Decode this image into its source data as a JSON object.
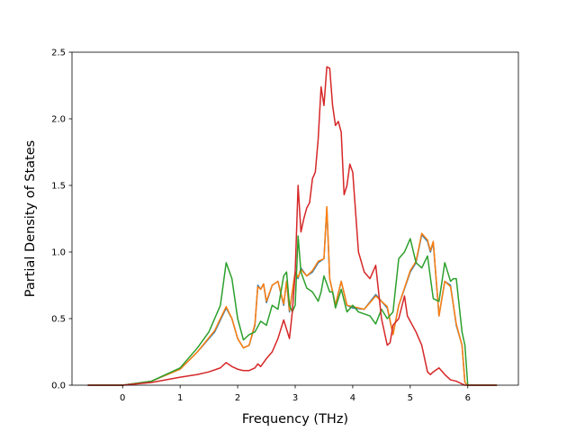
{
  "chart_data": {
    "type": "line",
    "title": "",
    "xlabel": "Frequency (THz)",
    "ylabel": "Partial Density of States",
    "xlim": [
      -0.88,
      6.88
    ],
    "ylim": [
      0.0,
      2.5
    ],
    "xticks": [
      0,
      1,
      2,
      3,
      4,
      5,
      6
    ],
    "xtick_labels": [
      "0",
      "1",
      "2",
      "3",
      "4",
      "5",
      "6"
    ],
    "yticks": [
      0.0,
      0.5,
      1.0,
      1.5,
      2.0,
      2.5
    ],
    "ytick_labels": [
      "0.0",
      "0.5",
      "1.0",
      "1.5",
      "2.0",
      "2.5"
    ],
    "grid": false,
    "series": [
      {
        "color": "#1f77b4",
        "x": [
          -0.6,
          0.0,
          0.5,
          1.0,
          1.3,
          1.6,
          1.8,
          1.9,
          2.0,
          2.1,
          2.2,
          2.3,
          2.35,
          2.4,
          2.45,
          2.5,
          2.6,
          2.7,
          2.8,
          2.85,
          2.9,
          3.0,
          3.05,
          3.1,
          3.2,
          3.3,
          3.4,
          3.5,
          3.55,
          3.6,
          3.7,
          3.8,
          3.9,
          4.0,
          4.2,
          4.4,
          4.6,
          4.7,
          4.8,
          5.0,
          5.1,
          5.2,
          5.3,
          5.35,
          5.4,
          5.5,
          5.6,
          5.7,
          5.8,
          5.9,
          5.95,
          6.0,
          6.5
        ],
        "y": [
          0.0,
          0.0,
          0.03,
          0.12,
          0.25,
          0.4,
          0.58,
          0.5,
          0.35,
          0.28,
          0.3,
          0.45,
          0.75,
          0.72,
          0.76,
          0.62,
          0.75,
          0.78,
          0.6,
          0.78,
          0.55,
          0.85,
          0.8,
          0.88,
          0.82,
          0.85,
          0.92,
          0.95,
          1.33,
          0.8,
          0.6,
          0.78,
          0.6,
          0.58,
          0.57,
          0.68,
          0.58,
          0.38,
          0.6,
          0.85,
          0.92,
          1.13,
          1.08,
          1.0,
          1.07,
          0.52,
          0.78,
          0.75,
          0.45,
          0.3,
          0.02,
          0.0,
          0.0
        ]
      },
      {
        "color": "#ff7f0e",
        "x": [
          -0.6,
          0.0,
          0.5,
          1.0,
          1.3,
          1.6,
          1.8,
          1.9,
          2.0,
          2.1,
          2.2,
          2.3,
          2.35,
          2.4,
          2.45,
          2.5,
          2.6,
          2.7,
          2.8,
          2.85,
          2.9,
          3.0,
          3.05,
          3.1,
          3.2,
          3.3,
          3.4,
          3.5,
          3.55,
          3.6,
          3.7,
          3.8,
          3.9,
          4.0,
          4.2,
          4.4,
          4.6,
          4.7,
          4.8,
          5.0,
          5.1,
          5.2,
          5.3,
          5.35,
          5.4,
          5.5,
          5.6,
          5.7,
          5.8,
          5.9,
          5.95,
          6.0,
          6.5
        ],
        "y": [
          0.0,
          0.0,
          0.03,
          0.12,
          0.25,
          0.41,
          0.59,
          0.5,
          0.35,
          0.28,
          0.3,
          0.46,
          0.74,
          0.72,
          0.76,
          0.63,
          0.75,
          0.78,
          0.61,
          0.78,
          0.56,
          0.85,
          0.81,
          0.87,
          0.82,
          0.86,
          0.93,
          0.95,
          1.34,
          0.8,
          0.6,
          0.78,
          0.6,
          0.59,
          0.57,
          0.67,
          0.59,
          0.38,
          0.6,
          0.86,
          0.93,
          1.14,
          1.09,
          1.01,
          1.08,
          0.52,
          0.78,
          0.74,
          0.46,
          0.3,
          0.02,
          0.0,
          0.0
        ]
      },
      {
        "color": "#2ca02c",
        "x": [
          -0.6,
          0.0,
          0.5,
          1.0,
          1.3,
          1.5,
          1.7,
          1.8,
          1.9,
          2.0,
          2.1,
          2.2,
          2.3,
          2.4,
          2.5,
          2.6,
          2.7,
          2.8,
          2.85,
          2.9,
          2.95,
          3.0,
          3.05,
          3.1,
          3.2,
          3.3,
          3.4,
          3.45,
          3.5,
          3.6,
          3.65,
          3.7,
          3.8,
          3.9,
          4.0,
          4.1,
          4.3,
          4.4,
          4.5,
          4.6,
          4.7,
          4.8,
          4.9,
          5.0,
          5.1,
          5.2,
          5.3,
          5.4,
          5.5,
          5.6,
          5.7,
          5.75,
          5.8,
          5.9,
          5.95,
          6.0,
          6.5
        ],
        "y": [
          0.0,
          0.0,
          0.03,
          0.13,
          0.28,
          0.4,
          0.6,
          0.92,
          0.8,
          0.5,
          0.34,
          0.38,
          0.4,
          0.48,
          0.45,
          0.6,
          0.57,
          0.82,
          0.85,
          0.6,
          0.55,
          0.6,
          1.12,
          0.85,
          0.73,
          0.7,
          0.63,
          0.7,
          0.82,
          0.7,
          0.7,
          0.58,
          0.72,
          0.55,
          0.6,
          0.55,
          0.52,
          0.46,
          0.57,
          0.5,
          0.55,
          0.95,
          1.0,
          1.1,
          0.92,
          0.88,
          0.97,
          0.65,
          0.63,
          0.92,
          0.78,
          0.8,
          0.8,
          0.4,
          0.3,
          0.0,
          0.0
        ]
      },
      {
        "color": "#d62728",
        "x": [
          -0.6,
          0.0,
          0.5,
          1.0,
          1.3,
          1.5,
          1.7,
          1.8,
          1.9,
          2.0,
          2.1,
          2.2,
          2.3,
          2.35,
          2.4,
          2.5,
          2.6,
          2.7,
          2.8,
          2.9,
          2.95,
          3.0,
          3.05,
          3.1,
          3.15,
          3.2,
          3.25,
          3.3,
          3.35,
          3.4,
          3.45,
          3.5,
          3.55,
          3.6,
          3.65,
          3.7,
          3.75,
          3.8,
          3.85,
          3.9,
          3.95,
          4.0,
          4.05,
          4.1,
          4.2,
          4.3,
          4.4,
          4.5,
          4.6,
          4.65,
          4.7,
          4.8,
          4.9,
          4.95,
          5.0,
          5.1,
          5.2,
          5.3,
          5.35,
          5.4,
          5.5,
          5.6,
          5.7,
          5.8,
          5.9,
          5.95,
          6.0,
          6.5
        ],
        "y": [
          0.0,
          0.0,
          0.02,
          0.06,
          0.08,
          0.1,
          0.13,
          0.17,
          0.14,
          0.12,
          0.11,
          0.11,
          0.13,
          0.16,
          0.14,
          0.2,
          0.25,
          0.35,
          0.49,
          0.35,
          0.55,
          0.85,
          1.5,
          1.15,
          1.25,
          1.33,
          1.37,
          1.55,
          1.6,
          1.85,
          2.24,
          2.1,
          2.39,
          2.38,
          2.1,
          1.95,
          1.98,
          1.9,
          1.43,
          1.5,
          1.66,
          1.6,
          1.3,
          1.0,
          0.85,
          0.8,
          0.9,
          0.5,
          0.3,
          0.32,
          0.45,
          0.5,
          0.67,
          0.52,
          0.48,
          0.4,
          0.3,
          0.1,
          0.08,
          0.1,
          0.13,
          0.08,
          0.04,
          0.03,
          0.01,
          0.0,
          0.0,
          0.0
        ]
      }
    ]
  }
}
